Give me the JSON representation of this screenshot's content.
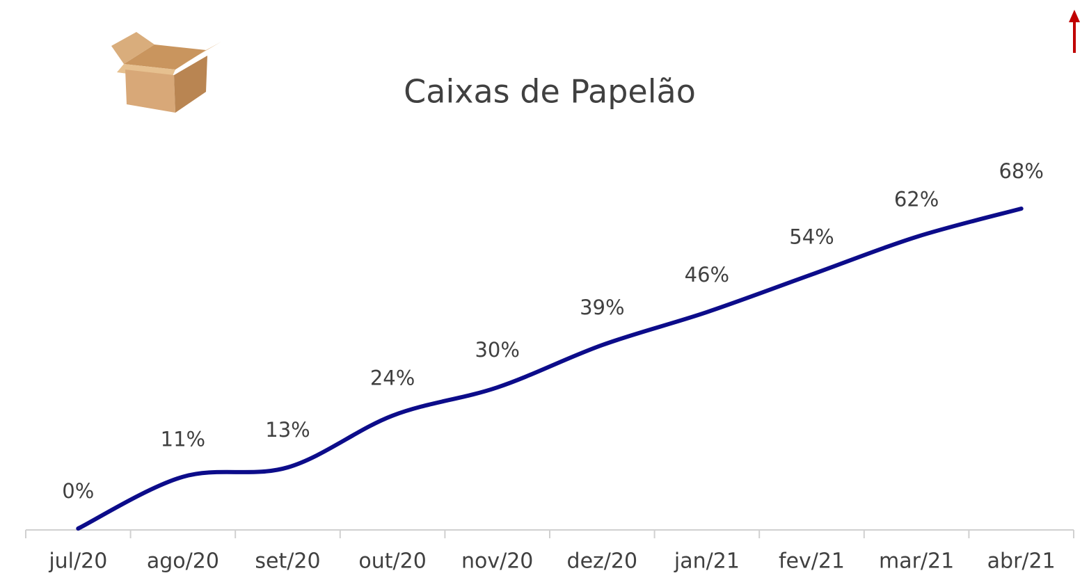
{
  "chart_data": {
    "type": "line",
    "title": "Caixas de Papelão",
    "categories": [
      "jul/20",
      "ago/20",
      "set/20",
      "out/20",
      "nov/20",
      "dez/20",
      "jan/21",
      "fev/21",
      "mar/21",
      "abr/21"
    ],
    "series": [
      {
        "name": "Caixas de Papelão",
        "color": "#0c0c8a",
        "values": [
          0,
          11,
          13,
          24,
          30,
          39,
          46,
          54,
          62,
          68
        ],
        "value_labels": [
          "0%",
          "11%",
          "13%",
          "24%",
          "30%",
          "39%",
          "46%",
          "54%",
          "62%",
          "68%"
        ]
      }
    ],
    "smooth": true
  }
}
